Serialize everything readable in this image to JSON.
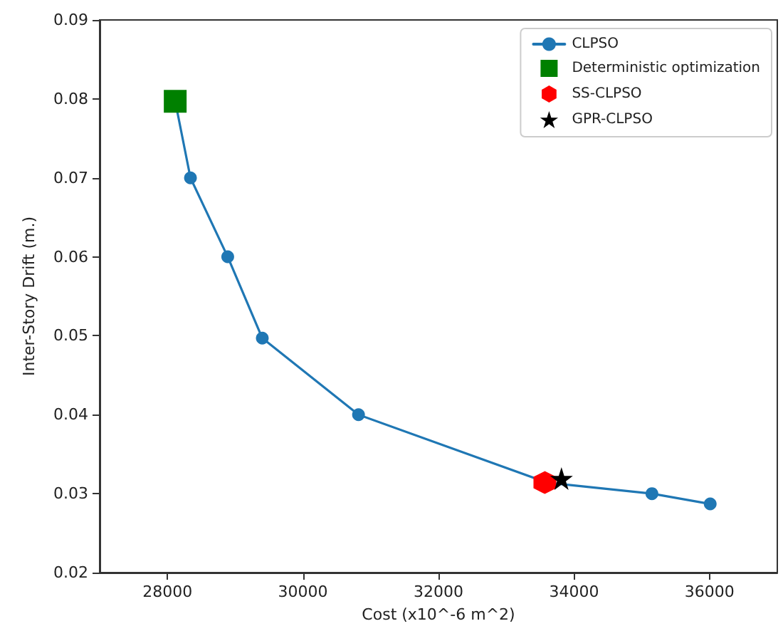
{
  "chart_data": {
    "type": "line",
    "xlabel": "Cost (x10^-6 m^2)",
    "ylabel": "Inter-Story Drift (m.)",
    "xlim": [
      27000,
      37000
    ],
    "xticks": [
      28000,
      30000,
      32000,
      34000,
      36000
    ],
    "ylim": [
      0.02,
      0.09
    ],
    "yticks": [
      0.02,
      0.03,
      0.04,
      0.05,
      0.06,
      0.07,
      0.08,
      0.09
    ],
    "grid": false,
    "legend": "top right",
    "series": [
      {
        "name": "CLPSO",
        "marker": "circle",
        "color": "#1f77b4",
        "x": [
          28115,
          28340,
          28890,
          29400,
          30820,
          33600,
          35150,
          36010
        ],
        "values": [
          0.0797,
          0.07,
          0.06,
          0.0497,
          0.04,
          0.0314,
          0.03,
          0.0287
        ]
      },
      {
        "name": "Deterministic optimization",
        "type": "scatter",
        "marker": "square",
        "color": "#008000",
        "x": [
          28115
        ],
        "values": [
          0.0797
        ]
      },
      {
        "name": "SS-CLPSO",
        "type": "scatter",
        "color": "#ff0000",
        "x": [
          33570
        ],
        "values": [
          0.0314
        ]
      },
      {
        "name": "GPR-CLPSO",
        "type": "scatter",
        "marker": "star",
        "color": "#000000",
        "x": [
          33815
        ],
        "values": [
          0.0319
        ]
      }
    ]
  }
}
